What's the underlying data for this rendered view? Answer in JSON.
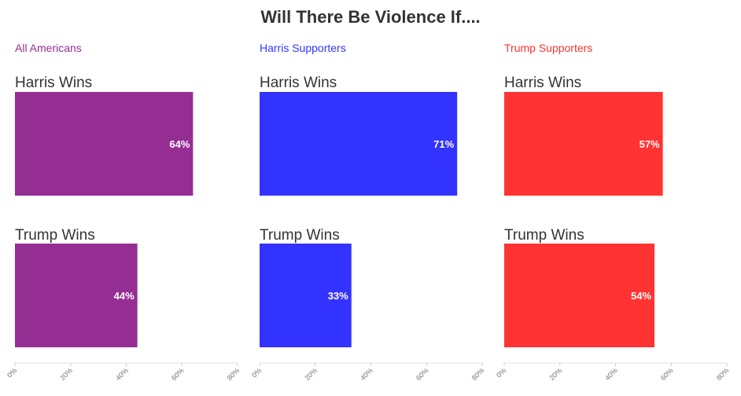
{
  "title": "Will There Be Violence If....",
  "chart_data": [
    {
      "type": "bar",
      "orientation": "horizontal",
      "title": "All Americans",
      "color": "#952E93",
      "categories": [
        "Harris Wins",
        "Trump Wins"
      ],
      "values": [
        64,
        44
      ],
      "value_labels": [
        "64%",
        "44%"
      ],
      "xlim": [
        0,
        80
      ],
      "xticks": [
        "0%",
        "20%",
        "40%",
        "60%",
        "80%"
      ],
      "grid": false
    },
    {
      "type": "bar",
      "orientation": "horizontal",
      "title": "Harris Supporters",
      "color": "#3333FF",
      "categories": [
        "Harris Wins",
        "Trump Wins"
      ],
      "values": [
        71,
        33
      ],
      "value_labels": [
        "71%",
        "33%"
      ],
      "xlim": [
        0,
        80
      ],
      "xticks": [
        "0%",
        "20%",
        "40%",
        "60%",
        "80%"
      ],
      "grid": false
    },
    {
      "type": "bar",
      "orientation": "horizontal",
      "title": "Trump Supporters",
      "color": "#FF3333",
      "categories": [
        "Harris Wins",
        "Trump Wins"
      ],
      "values": [
        57,
        54
      ],
      "value_labels": [
        "57%",
        "54%"
      ],
      "xlim": [
        0,
        80
      ],
      "xticks": [
        "0%",
        "20%",
        "40%",
        "60%",
        "80%"
      ],
      "grid": false
    }
  ]
}
